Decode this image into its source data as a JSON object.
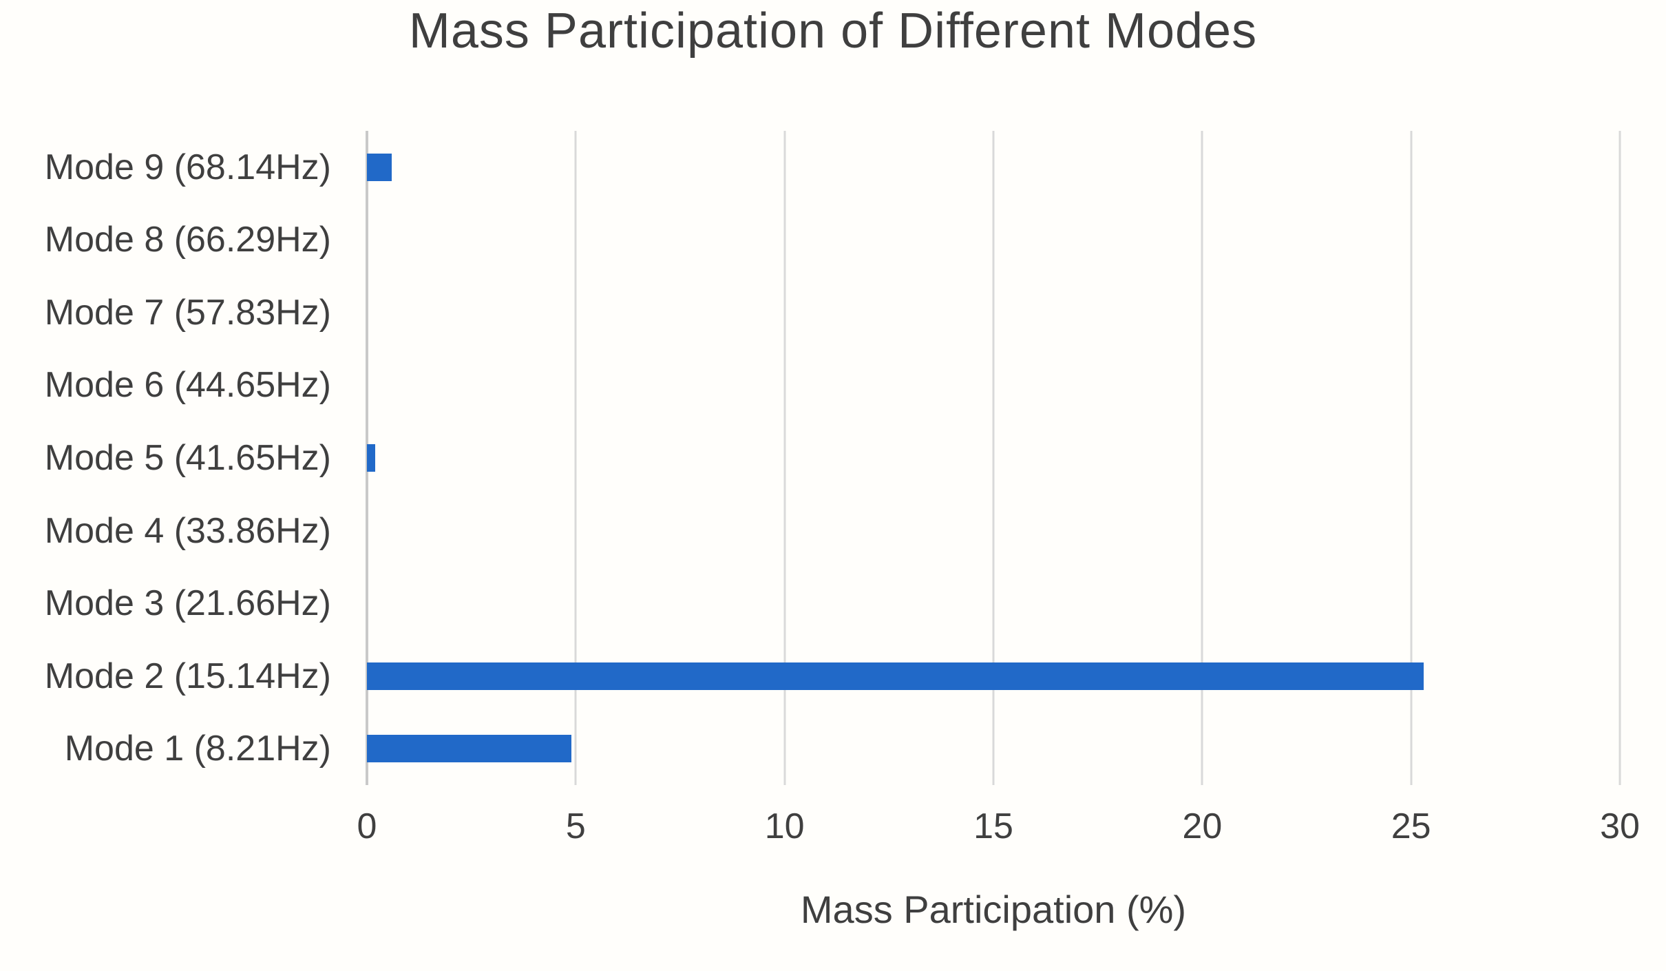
{
  "figure": {
    "background_color": "#fffefb"
  },
  "chart_data": {
    "type": "bar",
    "orientation": "horizontal",
    "title": "Mass Participation of Different Modes",
    "xlabel": "Mass Participation (%)",
    "ylabel": "",
    "xlim": [
      0,
      30
    ],
    "xticks": [
      0,
      5,
      10,
      15,
      20,
      25,
      30
    ],
    "grid": true,
    "legend": false,
    "categories_top_to_bottom": [
      "Mode 9 (68.14Hz)",
      "Mode 8 (66.29Hz)",
      "Mode 7 (57.83Hz)",
      "Mode 6 (44.65Hz)",
      "Mode 5 (41.65Hz)",
      "Mode 4 (33.86Hz)",
      "Mode 3 (21.66Hz)",
      "Mode 2 (15.14Hz)",
      "Mode 1 (8.21Hz)"
    ],
    "values_top_to_bottom": [
      0.6,
      0,
      0,
      0,
      0.2,
      0,
      0,
      25.3,
      4.9
    ],
    "bar_color": "#2169c8",
    "gridline_color": "#d9d9d9",
    "zero_line_color": "#c9c9c9",
    "text_color": "#3f3f3f"
  }
}
